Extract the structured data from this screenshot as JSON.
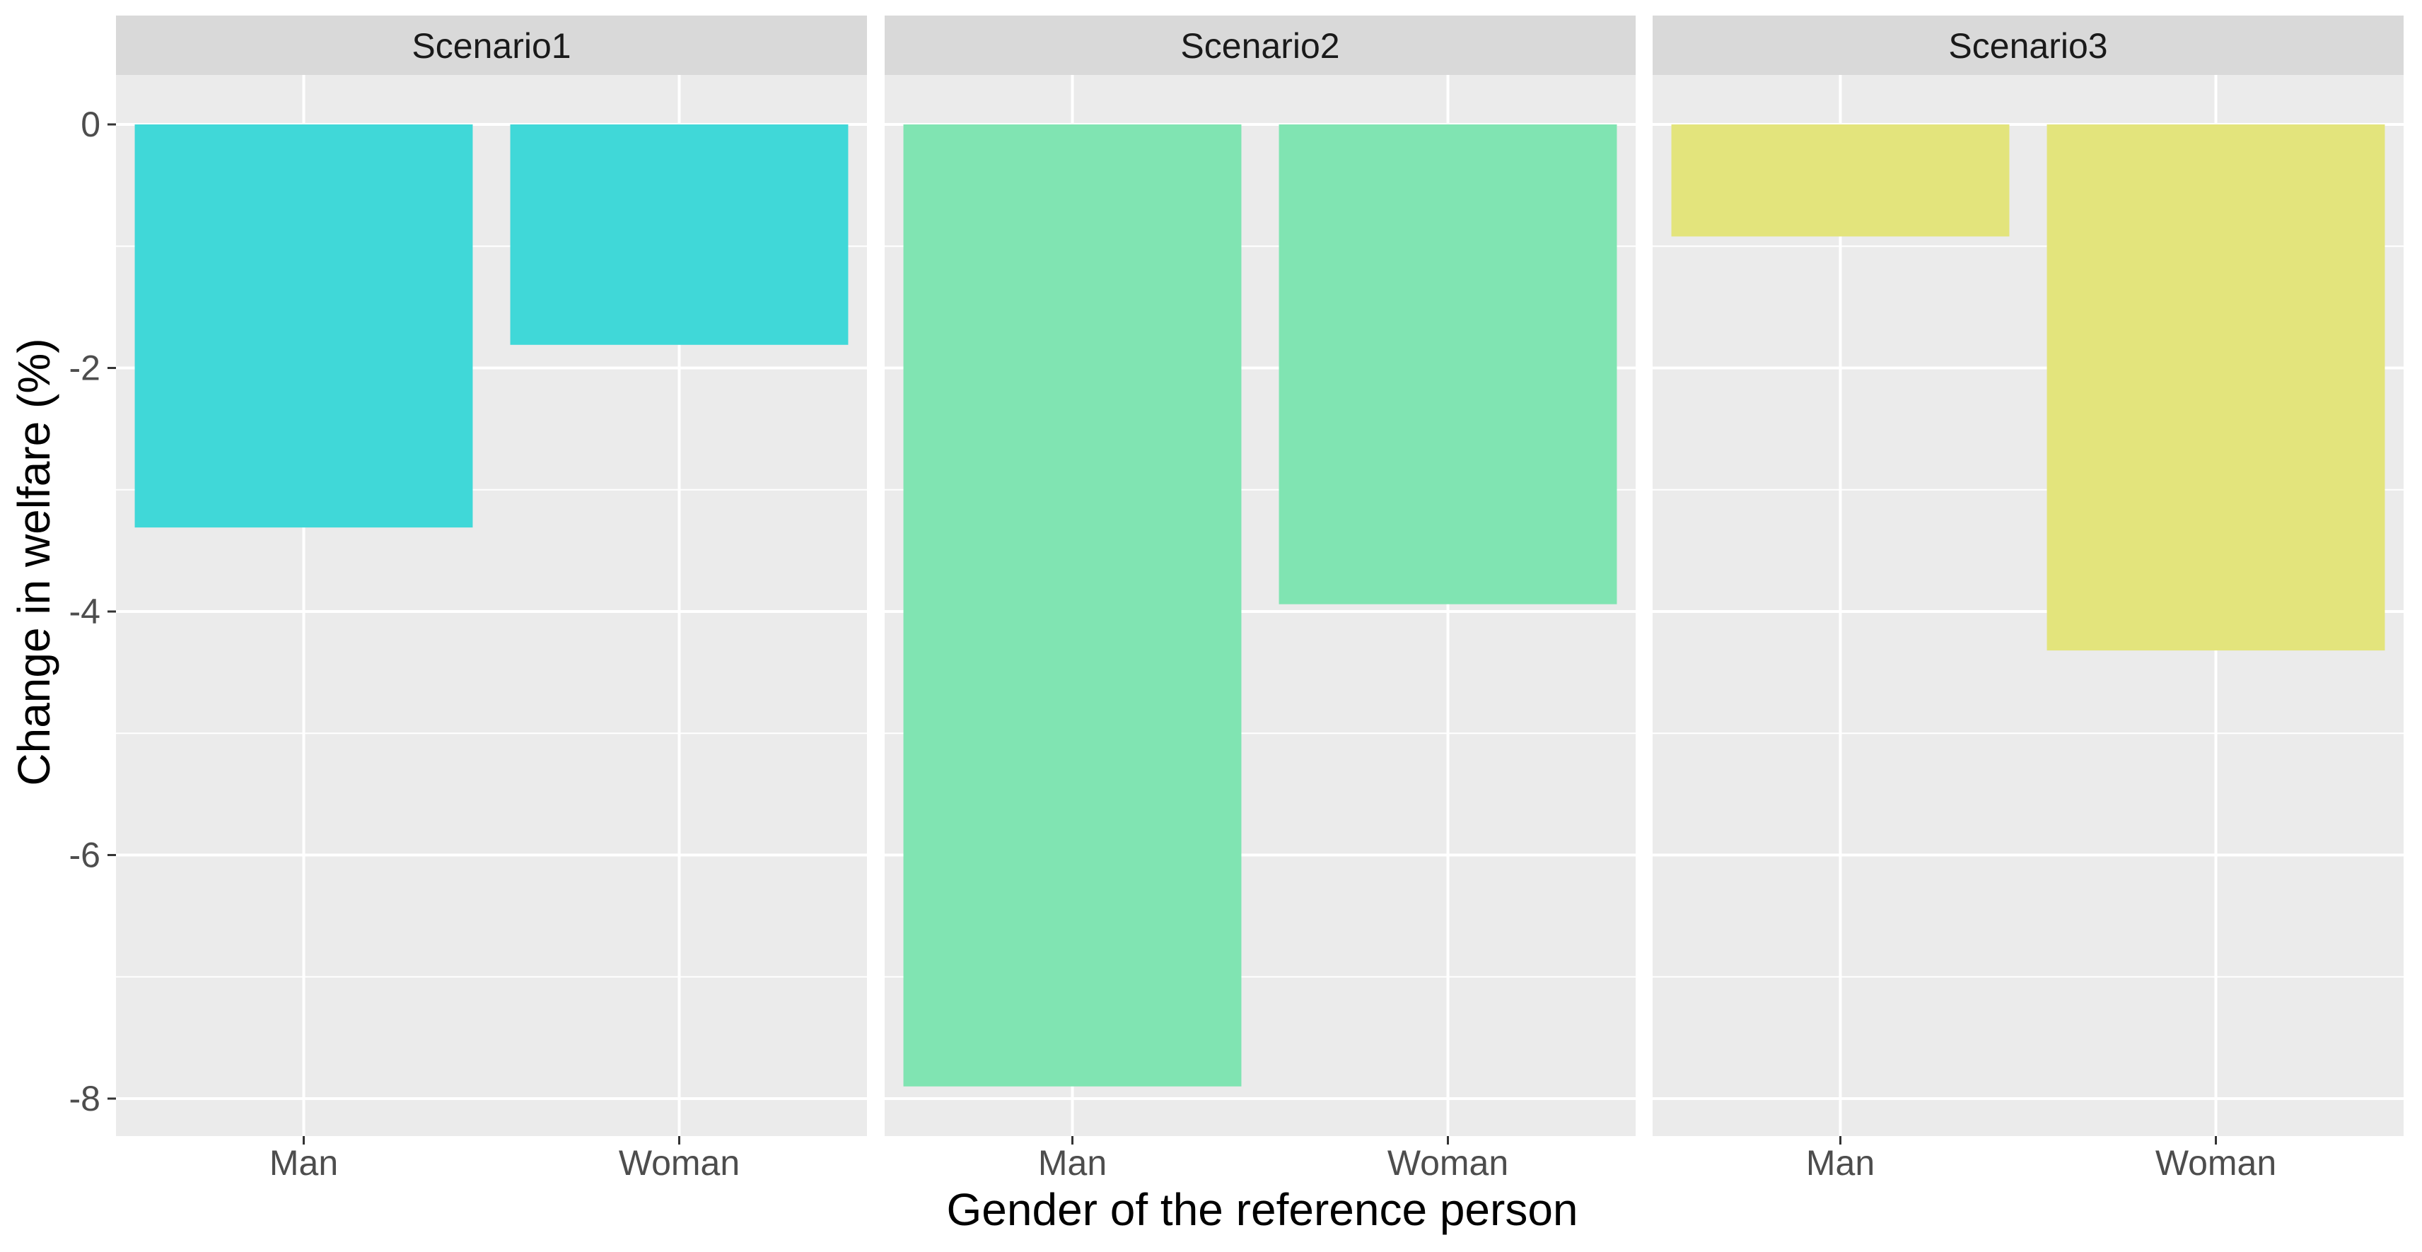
{
  "chart_data": {
    "type": "bar",
    "xlabel": "Gender of the reference person",
    "ylabel": "Change in welfare (%)",
    "ylim": [
      -8.3,
      0.4
    ],
    "yticks": [
      0,
      -2,
      -4,
      -6,
      -8
    ],
    "ytick_labels": [
      "0",
      "-2",
      "-4",
      "-6",
      "-8"
    ],
    "categories": [
      "Man",
      "Woman"
    ],
    "grid": true,
    "legend": "none",
    "panels": [
      {
        "name": "Scenario1",
        "color": "#40D8D8",
        "values": [
          -3.31,
          -1.81
        ]
      },
      {
        "name": "Scenario2",
        "color": "#80E4B2",
        "values": [
          -7.9,
          -3.94
        ]
      },
      {
        "name": "Scenario3",
        "color": "#E3E47C",
        "values": [
          -0.92,
          -4.32
        ]
      }
    ],
    "panel_background": "#EBEBEB",
    "strip_background": "#D9D9D9"
  }
}
